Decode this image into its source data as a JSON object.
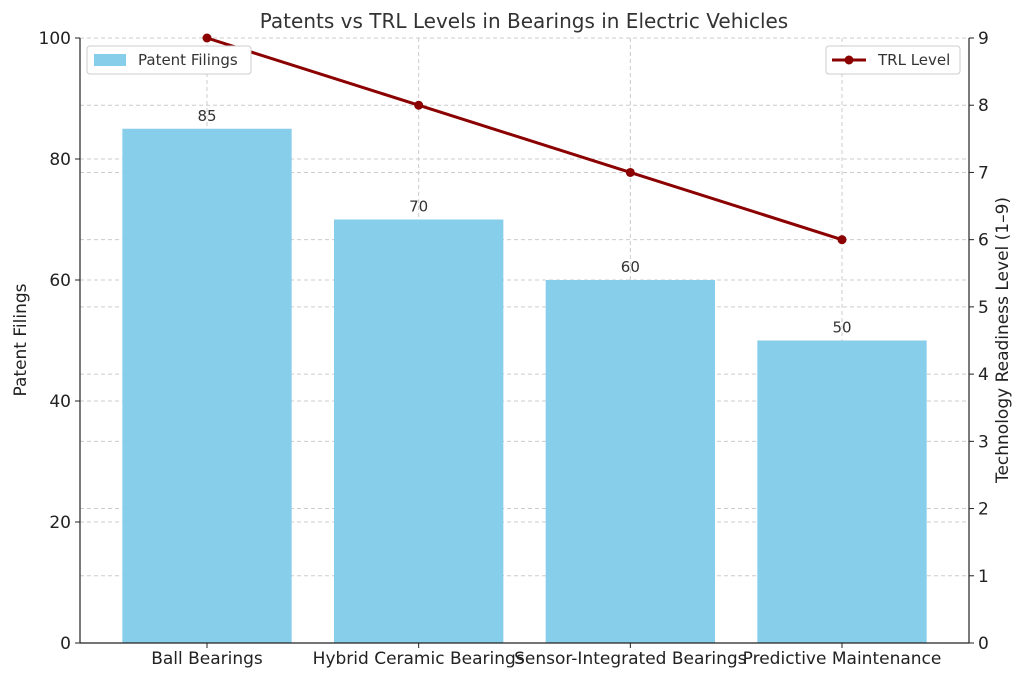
{
  "chart_data": {
    "type": "bar",
    "title": "Patents vs TRL Levels in Bearings in Electric Vehicles",
    "categories": [
      "Ball Bearings",
      "Hybrid Ceramic Bearings",
      "Sensor-Integrated Bearings",
      "Predictive Maintenance"
    ],
    "series": [
      {
        "name": "Patent Filings",
        "type": "bar",
        "axis": "left",
        "values": [
          85,
          70,
          60,
          50
        ],
        "color": "#87CEEB"
      },
      {
        "name": "TRL Level",
        "type": "line",
        "axis": "right",
        "values": [
          9,
          8,
          7,
          6
        ],
        "color": "#8B0000"
      }
    ],
    "ylabel": "Patent Filings",
    "y2label": "Technology Readiness Level (1–9)",
    "ylim": [
      0,
      100
    ],
    "y2lim": [
      0,
      9
    ],
    "yticks": [
      0,
      20,
      40,
      60,
      80,
      100
    ],
    "y2ticks": [
      0,
      1,
      2,
      3,
      4,
      5,
      6,
      7,
      8,
      9
    ],
    "grid": true,
    "legend_left": "upper-left",
    "legend_right": "upper-right"
  }
}
